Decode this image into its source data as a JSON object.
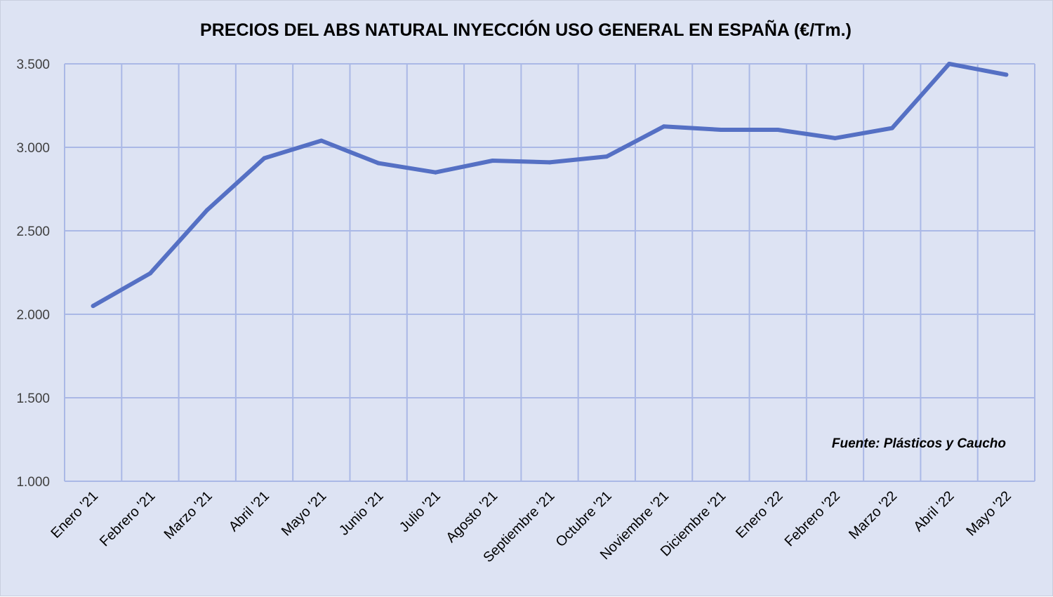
{
  "chart_data": {
    "type": "line",
    "title": "PRECIOS DEL ABS NATURAL INYECCIÓN  USO GENERAL EN ESPAÑA (€/Tm.)",
    "xlabel": "",
    "ylabel": "",
    "categories": [
      "Enero '21",
      "Febrero '21",
      "Marzo '21",
      "Abril '21",
      "Mayo '21",
      "Junio '21",
      "Julio '21",
      "Agosto '21",
      "Septiembre '21",
      "Octubre '21",
      "Noviembre '21",
      "Diciembre '21",
      "Enero '22",
      "Febrero '22",
      "Marzo '22",
      "Abril '22",
      "Mayo '22"
    ],
    "series": [
      {
        "values": [
          2050,
          2245,
          2625,
          2935,
          3040,
          2905,
          2850,
          2920,
          2910,
          2945,
          3125,
          3105,
          3105,
          3055,
          3115,
          3500,
          3435
        ],
        "color": "#5570c4"
      }
    ],
    "ylim": [
      1000,
      3500
    ],
    "yticks": [
      1000,
      1500,
      2000,
      2500,
      3000,
      3500
    ],
    "ytick_labels": [
      "1.000",
      "1.500",
      "2.000",
      "2.500",
      "3.000",
      "3.500"
    ],
    "grid": true,
    "legend": "none",
    "grid_color": "#aab8e6",
    "annotation": "Fuente: Plásticos y Caucho"
  }
}
